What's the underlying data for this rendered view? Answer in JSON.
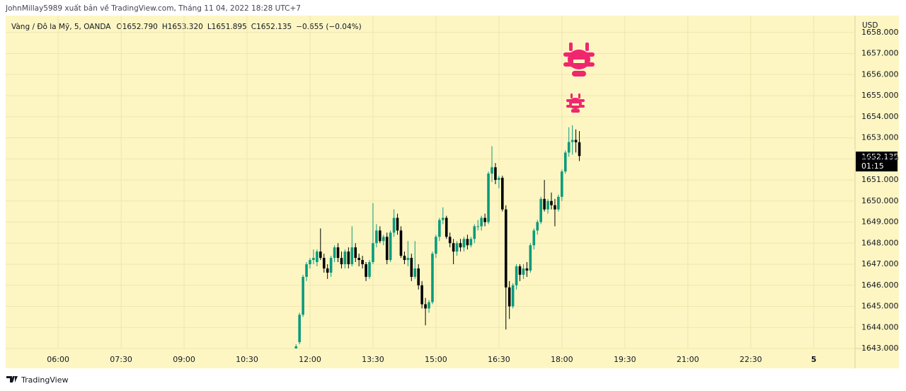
{
  "header": {
    "published": "JohnMillay5989 xuất bản về TradingView.com, Tháng 11 04, 2022 18:28 UTC+7"
  },
  "legend": {
    "symbol": "Vàng / Đô la Mỹ, 5, OANDA",
    "values": [
      "O1652.790",
      "H1653.320",
      "L1651.895",
      "C1652.135",
      "−0.655 (−0.04%)"
    ]
  },
  "footer": {
    "brand": "TradingView"
  },
  "chart_data": {
    "type": "candlestick",
    "currency": "USD",
    "countdown": "01:15",
    "up_color": "#0b9a7c",
    "down_color": "#000000",
    "grid": true,
    "xlim": [
      "04:45",
      "24:59"
    ],
    "xticks": [
      "06:00",
      "07:30",
      "09:00",
      "10:30",
      "12:00",
      "13:30",
      "15:00",
      "16:30",
      "18:00",
      "19:30",
      "21:00",
      "22:30",
      {
        "value": "24:00",
        "label": "5"
      }
    ],
    "ylim": [
      1643,
      1658.8
    ],
    "yticks": [
      {
        "value": 1643,
        "label": "1643.000"
      },
      {
        "value": 1644,
        "label": "1644.000"
      },
      {
        "value": 1645,
        "label": "1645.000"
      },
      {
        "value": 1646,
        "label": "1646.000"
      },
      {
        "value": 1647,
        "label": "1647.000"
      },
      {
        "value": 1648,
        "label": "1648.000"
      },
      {
        "value": 1649,
        "label": "1649.000"
      },
      {
        "value": 1650,
        "label": "1650.000"
      },
      {
        "value": 1651,
        "label": "1651.000"
      },
      {
        "value": 1652,
        "label": "1652.000"
      },
      {
        "value": 1653,
        "label": "1653.000"
      },
      {
        "value": 1654,
        "label": "1654.000"
      },
      {
        "value": 1655,
        "label": "1655.000"
      },
      {
        "value": 1656,
        "label": "1656.000"
      },
      {
        "value": 1657,
        "label": "1657.000"
      },
      {
        "value": 1658,
        "label": "1658.000"
      }
    ],
    "x": [
      "11:40",
      "11:45",
      "11:50",
      "11:55",
      "12:00",
      "12:05",
      "12:10",
      "12:15",
      "12:20",
      "12:25",
      "12:30",
      "12:35",
      "12:40",
      "12:45",
      "12:50",
      "12:55",
      "13:00",
      "13:05",
      "13:10",
      "13:15",
      "13:20",
      "13:25",
      "13:30",
      "13:35",
      "13:40",
      "13:45",
      "13:50",
      "13:55",
      "14:00",
      "14:05",
      "14:10",
      "14:15",
      "14:20",
      "14:25",
      "14:30",
      "14:35",
      "14:40",
      "14:45",
      "14:50",
      "14:55",
      "15:00",
      "15:05",
      "15:10",
      "15:15",
      "15:20",
      "15:25",
      "15:30",
      "15:35",
      "15:40",
      "15:45",
      "15:50",
      "15:55",
      "16:00",
      "16:05",
      "16:10",
      "16:15",
      "16:20",
      "16:25",
      "16:30",
      "16:35",
      "16:40",
      "16:45",
      "16:50",
      "16:55",
      "17:00",
      "17:05",
      "17:10",
      "17:15",
      "17:20",
      "17:25",
      "17:30",
      "17:35",
      "17:40",
      "17:45",
      "17:50",
      "17:55",
      "18:00",
      "18:05",
      "18:10",
      "18:15",
      "18:20",
      "18:25"
    ],
    "open": [
      1643.0,
      1643.3,
      1644.6,
      1646.4,
      1647.0,
      1647.2,
      1647.1,
      1647.6,
      1647.3,
      1646.8,
      1646.6,
      1647.3,
      1647.8,
      1647.3,
      1647.0,
      1647.6,
      1647.0,
      1647.8,
      1647.3,
      1647.2,
      1647.0,
      1646.4,
      1647.1,
      1648.0,
      1648.6,
      1648.1,
      1648.3,
      1647.2,
      1648.5,
      1649.2,
      1648.6,
      1647.4,
      1647.2,
      1647.3,
      1646.4,
      1646.8,
      1646.0,
      1645.1,
      1644.9,
      1645.2,
      1647.5,
      1648.3,
      1649.1,
      1649.2,
      1648.3,
      1648.0,
      1647.6,
      1648.0,
      1647.8,
      1648.2,
      1647.9,
      1648.2,
      1648.8,
      1648.8,
      1649.2,
      1649.0,
      1651.3,
      1651.6,
      1651.0,
      1651.1,
      1649.6,
      1645.9,
      1645.0,
      1646.0,
      1646.9,
      1646.5,
      1646.8,
      1646.7,
      1647.9,
      1648.6,
      1649.0,
      1650.1,
      1649.6,
      1650.0,
      1649.8,
      1649.6,
      1650.2,
      1651.4,
      1652.3,
      1652.8,
      1652.9,
      1652.79
    ],
    "high": [
      1643.2,
      1644.7,
      1646.5,
      1647.1,
      1647.3,
      1647.7,
      1647.7,
      1648.7,
      1647.5,
      1647.0,
      1647.4,
      1647.9,
      1648.0,
      1647.6,
      1647.7,
      1647.8,
      1648.8,
      1648.0,
      1647.5,
      1647.4,
      1647.1,
      1647.2,
      1649.9,
      1648.9,
      1648.8,
      1648.4,
      1648.5,
      1648.6,
      1649.6,
      1649.4,
      1648.8,
      1647.6,
      1648.1,
      1647.5,
      1648.1,
      1647.0,
      1646.2,
      1645.4,
      1645.3,
      1647.6,
      1648.4,
      1649.2,
      1649.7,
      1649.3,
      1648.5,
      1648.2,
      1648.1,
      1648.2,
      1648.3,
      1648.4,
      1648.3,
      1648.9,
      1649.1,
      1649.3,
      1649.4,
      1651.4,
      1652.6,
      1651.8,
      1651.2,
      1651.2,
      1649.8,
      1646.2,
      1646.1,
      1647.0,
      1647.0,
      1647.0,
      1647.1,
      1648.0,
      1648.7,
      1649.1,
      1650.2,
      1651.0,
      1650.1,
      1650.4,
      1650.1,
      1650.3,
      1651.5,
      1652.4,
      1653.5,
      1653.6,
      1653.4,
      1653.32
    ],
    "low": [
      1643.0,
      1643.2,
      1644.5,
      1646.2,
      1646.8,
      1647.0,
      1646.9,
      1647.2,
      1646.6,
      1646.3,
      1646.4,
      1647.1,
      1647.1,
      1646.8,
      1646.8,
      1646.8,
      1646.9,
      1647.1,
      1646.9,
      1646.8,
      1646.2,
      1646.3,
      1647.0,
      1647.8,
      1648.0,
      1647.9,
      1647.0,
      1647.1,
      1648.3,
      1648.4,
      1647.3,
      1647.0,
      1646.9,
      1646.2,
      1646.3,
      1645.8,
      1644.9,
      1644.1,
      1644.7,
      1645.1,
      1647.3,
      1648.1,
      1648.9,
      1648.2,
      1647.8,
      1647.0,
      1647.4,
      1647.6,
      1647.6,
      1647.7,
      1647.8,
      1648.0,
      1648.6,
      1648.6,
      1648.8,
      1648.9,
      1650.9,
      1650.8,
      1650.6,
      1649.5,
      1643.9,
      1644.4,
      1644.9,
      1645.8,
      1646.2,
      1646.3,
      1646.4,
      1646.6,
      1647.7,
      1648.4,
      1648.9,
      1649.5,
      1649.4,
      1649.6,
      1648.8,
      1649.5,
      1650.0,
      1651.3,
      1652.1,
      1652.2,
      1652.3,
      1651.895
    ],
    "close": [
      1643.1,
      1644.6,
      1646.4,
      1647.0,
      1647.2,
      1647.3,
      1647.6,
      1647.3,
      1646.8,
      1646.6,
      1647.3,
      1647.8,
      1647.3,
      1647.0,
      1647.6,
      1647.0,
      1647.8,
      1647.3,
      1647.2,
      1647.0,
      1646.4,
      1647.1,
      1648.0,
      1648.6,
      1648.1,
      1648.3,
      1647.2,
      1648.5,
      1649.2,
      1648.6,
      1647.4,
      1647.2,
      1647.3,
      1646.4,
      1646.8,
      1646.0,
      1645.1,
      1644.9,
      1645.2,
      1647.5,
      1648.3,
      1649.1,
      1649.2,
      1648.3,
      1648.0,
      1647.6,
      1648.0,
      1647.8,
      1648.2,
      1647.9,
      1648.2,
      1648.8,
      1648.8,
      1649.2,
      1649.0,
      1651.3,
      1651.6,
      1651.0,
      1651.1,
      1649.6,
      1645.9,
      1645.0,
      1646.0,
      1646.9,
      1646.5,
      1646.8,
      1646.7,
      1647.9,
      1648.6,
      1649.0,
      1650.1,
      1649.6,
      1650.0,
      1649.8,
      1649.6,
      1650.2,
      1651.4,
      1652.3,
      1652.8,
      1652.9,
      1652.79,
      1652.135
    ]
  }
}
